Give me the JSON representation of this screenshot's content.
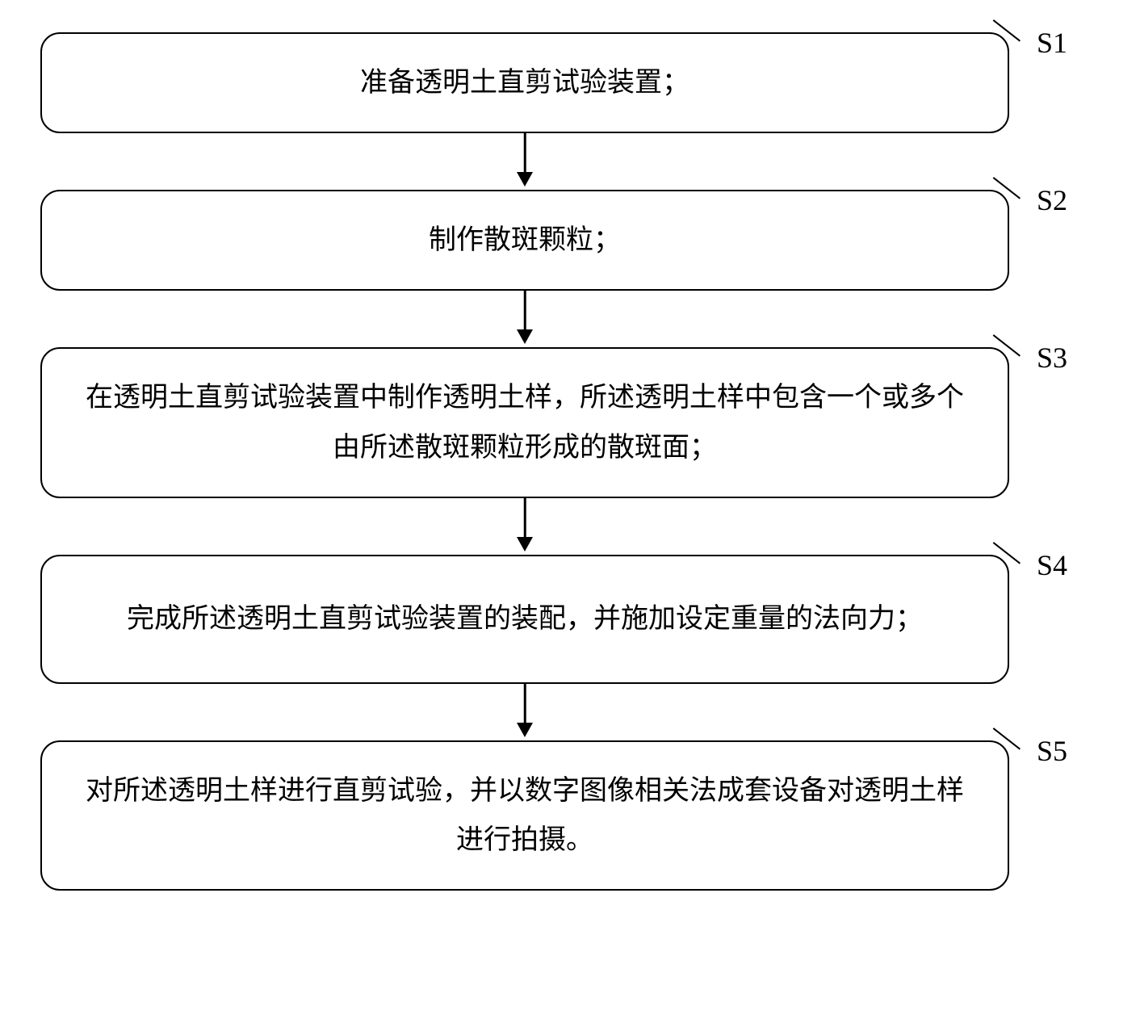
{
  "flowchart": {
    "type": "flowchart",
    "direction": "vertical",
    "box_style": {
      "border_color": "#000000",
      "border_width": 2.5,
      "border_radius": 24,
      "background_color": "#ffffff",
      "text_color": "#000000",
      "font_size": 34,
      "font_family": "SimSun"
    },
    "arrow_style": {
      "color": "#000000",
      "line_width": 2.5,
      "head_width": 20,
      "head_height": 18
    },
    "label_style": {
      "font_size": 36,
      "font_family": "Times New Roman",
      "color": "#000000"
    },
    "steps": [
      {
        "id": "s1",
        "label": "S1",
        "text": "准备透明土直剪试验装置；"
      },
      {
        "id": "s2",
        "label": "S2",
        "text": "制作散斑颗粒；"
      },
      {
        "id": "s3",
        "label": "S3",
        "text": "在透明土直剪试验装置中制作透明土样，所述透明土样中包含一个或多个由所述散斑颗粒形成的散斑面；"
      },
      {
        "id": "s4",
        "label": "S4",
        "text": "完成所述透明土直剪试验装置的装配，并施加设定重量的法向力；"
      },
      {
        "id": "s5",
        "label": "S5",
        "text": "对所述透明土样进行直剪试验，并以数字图像相关法成套设备对透明土样进行拍摄。"
      }
    ],
    "background_color": "#ffffff"
  }
}
